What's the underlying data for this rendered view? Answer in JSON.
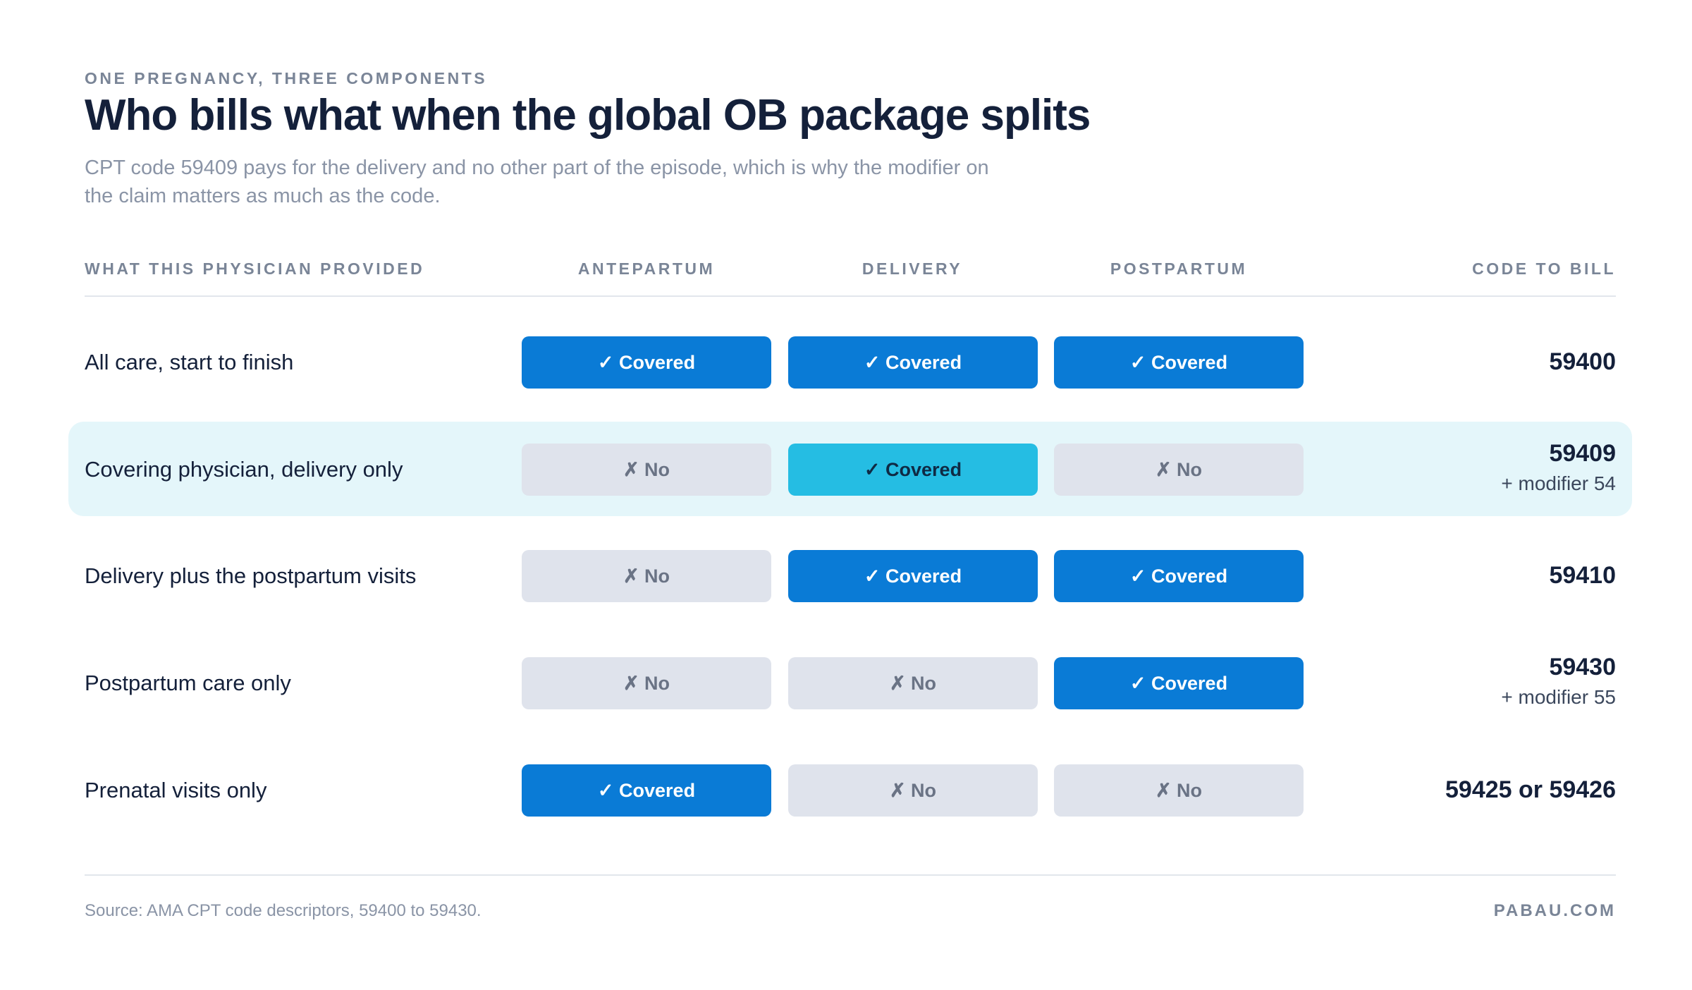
{
  "header": {
    "eyebrow": "ONE PREGNANCY, THREE COMPONENTS",
    "title": "Who bills what when the global OB package splits",
    "subtitle": "CPT code 59409 pays for the delivery and no other part of the episode, which is why the modifier on the claim matters as much as the code."
  },
  "table": {
    "columns": [
      "WHAT THIS PHYSICIAN PROVIDED",
      "ANTEPARTUM",
      "DELIVERY",
      "POSTPARTUM",
      "CODE TO BILL"
    ],
    "rows": [
      {
        "label": "All care, start to finish",
        "cells": [
          {
            "text": "✓ Covered",
            "covered": true
          },
          {
            "text": "✓ Covered",
            "covered": true
          },
          {
            "text": "✓ Covered",
            "covered": true
          }
        ],
        "code": "59400"
      },
      {
        "label": "Covering physician, delivery only",
        "cells": [
          {
            "text": "✗ No",
            "covered": false
          },
          {
            "text": "✓ Covered",
            "covered": true
          },
          {
            "text": "✗ No",
            "covered": false
          }
        ],
        "code": "59409",
        "modifier": "+ modifier 54"
      },
      {
        "label": "Delivery plus the postpartum visits",
        "cells": [
          {
            "text": "✗ No",
            "covered": false
          },
          {
            "text": "✓ Covered",
            "covered": true
          },
          {
            "text": "✓ Covered",
            "covered": true
          }
        ],
        "code": "59410"
      },
      {
        "label": "Postpartum care only",
        "cells": [
          {
            "text": "✗ No",
            "covered": false
          },
          {
            "text": "✗ No",
            "covered": false
          },
          {
            "text": "✓ Covered",
            "covered": true
          }
        ],
        "code": "59430",
        "modifier": "+ modifier 55"
      },
      {
        "label": "Prenatal visits only",
        "cells": [
          {
            "text": "✓ Covered",
            "covered": true
          },
          {
            "text": "✗ No",
            "covered": false
          },
          {
            "text": "✗ No",
            "covered": false
          }
        ],
        "code": "59425 or 59426"
      }
    ]
  },
  "footer": {
    "source": "Source: AMA CPT code descriptors, 59400 to 59430.",
    "brand": "PABAU.COM"
  }
}
